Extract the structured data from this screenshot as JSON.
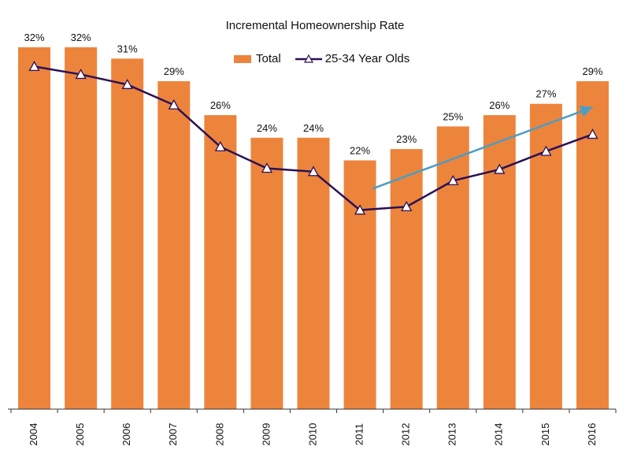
{
  "chart_data": {
    "type": "bar",
    "title": "Incremental Homeownership Rate",
    "categories": [
      "2004",
      "2005",
      "2006",
      "2007",
      "2008",
      "2009",
      "2010",
      "2011",
      "2012",
      "2013",
      "2014",
      "2015",
      "2016"
    ],
    "series": [
      {
        "name": "Total",
        "kind": "bar",
        "color": "#ED843C",
        "values": [
          32,
          32,
          31,
          29,
          26,
          24,
          24,
          22,
          23,
          25,
          26,
          27,
          29
        ],
        "labels": [
          "32%",
          "32%",
          "31%",
          "29%",
          "26%",
          "24%",
          "24%",
          "22%",
          "23%",
          "25%",
          "26%",
          "27%",
          "29%"
        ]
      },
      {
        "name": "25-34 Year Olds",
        "kind": "line",
        "marker": "triangle",
        "color": "#2A1155",
        "values": [
          30.3,
          29.6,
          28.7,
          26.9,
          23.2,
          21.3,
          21.0,
          17.6,
          17.9,
          20.2,
          21.2,
          22.8,
          24.3
        ]
      }
    ],
    "trend_arrow": {
      "color": "#4A9EC4",
      "from": {
        "category": "2011",
        "value": 19.5
      },
      "to": {
        "category": "2016",
        "value": 26.7
      }
    },
    "ylim": [
      0,
      34
    ],
    "xlabel": "",
    "ylabel": "",
    "legend_position": "top-center"
  }
}
